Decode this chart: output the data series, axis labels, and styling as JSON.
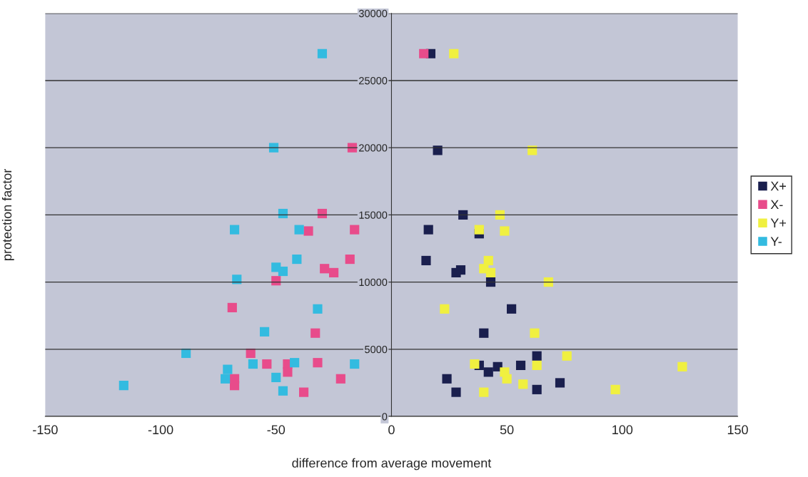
{
  "chart_data": {
    "type": "scatter",
    "xlabel": "difference from average movement",
    "ylabel": "protection factor",
    "xlim": [
      -150,
      150
    ],
    "xticks": [
      -150,
      -100,
      -50,
      0,
      50,
      100,
      150
    ],
    "ylim": [
      0,
      30000
    ],
    "yticks": [
      0,
      5000,
      10000,
      15000,
      20000,
      25000,
      30000
    ],
    "grid": "y",
    "legend": "right",
    "marker": "square",
    "series": [
      {
        "name": "X+",
        "color": "#1a1f4e",
        "x": [
          17,
          20,
          31,
          16,
          38,
          15,
          30,
          28,
          43,
          52,
          40,
          63,
          38,
          46,
          56,
          42,
          24,
          73,
          63,
          28
        ],
        "values": [
          27000,
          19800,
          15000,
          13900,
          13600,
          11600,
          10900,
          10700,
          10000,
          8000,
          6200,
          4500,
          3800,
          3700,
          3800,
          3300,
          2800,
          2500,
          2000,
          1800
        ]
      },
      {
        "name": "X-",
        "color": "#e84c8b",
        "x": [
          14,
          -17,
          -30,
          -36,
          -16,
          -18,
          -29,
          -25,
          -50,
          -69,
          -33,
          -61,
          -54,
          -45,
          -45,
          -32,
          -68,
          -68,
          -22,
          -38
        ],
        "values": [
          27000,
          20000,
          15100,
          13800,
          13900,
          11700,
          11000,
          10700,
          10100,
          8100,
          6200,
          4700,
          3900,
          3900,
          3300,
          4000,
          2800,
          2300,
          2800,
          1800
        ]
      },
      {
        "name": "Y+",
        "color": "#f0f040",
        "x": [
          27,
          61,
          47,
          38,
          49,
          42,
          40,
          43,
          68,
          23,
          62,
          76,
          36,
          49,
          50,
          57,
          63,
          40,
          126,
          97
        ],
        "values": [
          27000,
          19800,
          15000,
          13900,
          13800,
          11600,
          11000,
          10700,
          10000,
          8000,
          6200,
          4500,
          3900,
          3300,
          2800,
          2400,
          3800,
          1800,
          3700,
          2000
        ]
      },
      {
        "name": "Y-",
        "color": "#33bbe0",
        "x": [
          -30,
          -51,
          -47,
          -68,
          -40,
          -41,
          -50,
          -47,
          -67,
          -32,
          -55,
          -89,
          -60,
          -42,
          -71,
          -72,
          -50,
          -47,
          -116,
          -16
        ],
        "values": [
          27000,
          20000,
          15100,
          13900,
          13900,
          11700,
          11100,
          10800,
          10200,
          8000,
          6300,
          4700,
          3900,
          4000,
          3500,
          2800,
          2900,
          1900,
          2300,
          3900
        ]
      }
    ]
  }
}
